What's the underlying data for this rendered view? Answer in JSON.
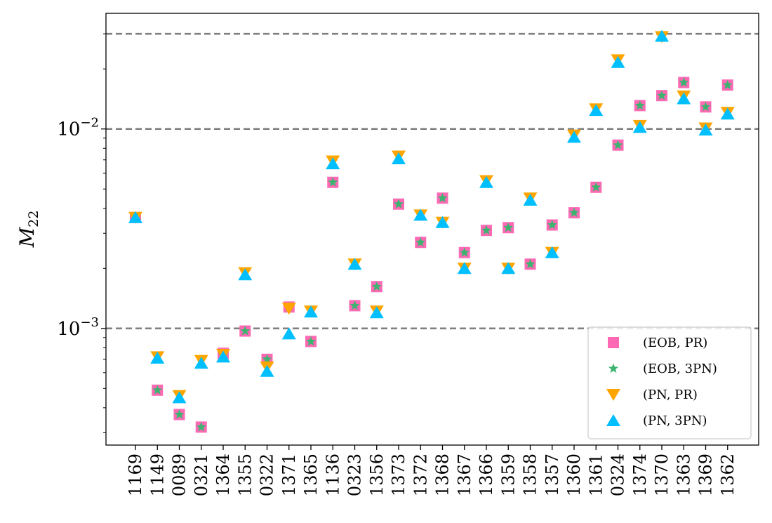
{
  "chart_data": {
    "type": "scatter",
    "ylabel": "M",
    "ylabel_sub": "22",
    "yscale": "log",
    "ylim": [
      0.00026,
      0.038
    ],
    "y_major_ticks": [
      {
        "value": 0.001,
        "base": "10",
        "exponent": "−3"
      },
      {
        "value": 0.01,
        "base": "10",
        "exponent": "−2"
      }
    ],
    "y_minor_ticks": [
      0.0003,
      0.0004,
      0.0005,
      0.0006,
      0.0007,
      0.0008,
      0.0009,
      0.002,
      0.003,
      0.004,
      0.005,
      0.006,
      0.007,
      0.008,
      0.009,
      0.02,
      0.03
    ],
    "hlines": [
      0.001,
      0.01,
      0.03
    ],
    "hline_color": "#808080",
    "categories": [
      "1169",
      "1149",
      "0089",
      "0321",
      "1364",
      "1355",
      "0322",
      "1371",
      "1365",
      "1136",
      "0323",
      "1356",
      "1373",
      "1372",
      "1368",
      "1367",
      "1366",
      "1359",
      "1358",
      "1357",
      "1360",
      "1361",
      "0324",
      "1374",
      "1370",
      "1363",
      "1369",
      "1362"
    ],
    "legend_position": "lower-right",
    "series": [
      {
        "name": "(EOB, PR)",
        "marker": "square",
        "color": "#ff69b4",
        "values": [
          0.0036,
          0.00049,
          0.00037,
          0.00032,
          0.00075,
          0.00097,
          0.0007,
          0.00128,
          0.00086,
          0.0054,
          0.0013,
          0.00162,
          0.0042,
          0.0027,
          0.0045,
          0.0024,
          0.0031,
          0.0032,
          0.0021,
          0.0033,
          0.0038,
          0.0051,
          0.0083,
          0.0131,
          0.0147,
          0.0171,
          0.0129,
          0.0166
        ]
      },
      {
        "name": "(EOB, 3PN)",
        "marker": "star",
        "color": "#3cb371",
        "values": [
          0.0036,
          0.00049,
          0.00037,
          0.00032,
          0.00073,
          0.00097,
          0.0007,
          0.00128,
          0.00086,
          0.0054,
          0.0013,
          0.00162,
          0.0042,
          0.0027,
          0.0045,
          0.0024,
          0.0031,
          0.0032,
          0.0021,
          0.0033,
          0.0038,
          0.0051,
          0.0083,
          0.0131,
          0.0147,
          0.0171,
          0.0129,
          0.0166
        ]
      },
      {
        "name": "(PN, PR)",
        "marker": "triangle-down",
        "color": "#ffa500",
        "values": [
          0.0036,
          0.00072,
          0.00046,
          0.00069,
          0.00074,
          0.0019,
          0.00064,
          0.00126,
          0.00122,
          0.0069,
          0.0021,
          0.00122,
          0.0073,
          0.0037,
          0.0034,
          0.002,
          0.0055,
          0.002,
          0.0045,
          0.0024,
          0.0093,
          0.0126,
          0.0222,
          0.0104,
          0.029,
          0.0146,
          0.0101,
          0.0121
        ]
      },
      {
        "name": "(PN, 3PN)",
        "marker": "triangle-up",
        "color": "#00bfff",
        "values": [
          0.0036,
          0.00071,
          0.00045,
          0.00067,
          0.00072,
          0.00186,
          0.00061,
          0.00094,
          0.00121,
          0.0067,
          0.0021,
          0.0012,
          0.0071,
          0.0037,
          0.0034,
          0.002,
          0.0054,
          0.002,
          0.0044,
          0.0024,
          0.0091,
          0.0124,
          0.0216,
          0.0102,
          0.0292,
          0.0142,
          0.0099,
          0.0119
        ]
      }
    ]
  }
}
